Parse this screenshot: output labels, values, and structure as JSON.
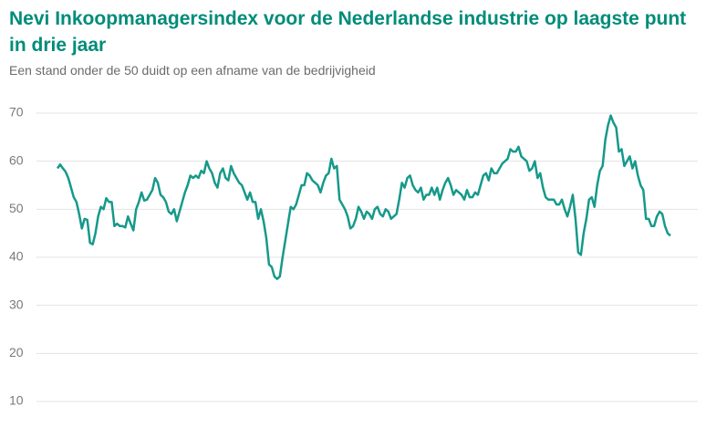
{
  "chart_data": {
    "type": "line",
    "title": "Nevi Inkoopmanagersindex voor de Nederlandse industrie op laagste punt in drie jaar",
    "subtitle": "Een stand onder de 50 duidt op een afname van de bedrijvigheid",
    "color": "#16998a",
    "ylim": [
      10,
      70
    ],
    "yticks": [
      10,
      20,
      30,
      40,
      50,
      60,
      70
    ],
    "grid": true,
    "values": [
      58.5,
      59.3,
      58.5,
      57.8,
      56.5,
      54.5,
      52.5,
      51.5,
      49,
      46,
      48,
      47.8,
      43,
      42.7,
      45,
      48.5,
      50.5,
      50,
      52.3,
      51.5,
      51.5,
      46.5,
      47,
      46.5,
      46.5,
      46.2,
      48.5,
      47,
      45.6,
      50,
      51.5,
      53.5,
      51.8,
      52,
      53,
      54,
      56.5,
      55.5,
      53,
      52.5,
      51.5,
      49.5,
      49,
      50,
      47.5,
      49.5,
      51.5,
      53.5,
      55,
      57,
      56.5,
      57,
      56.5,
      58,
      57.5,
      60,
      58.5,
      57.5,
      55.5,
      54.5,
      57.5,
      58.5,
      56.5,
      56,
      59,
      57.5,
      56.5,
      55.5,
      55,
      53.5,
      52,
      53.5,
      51.5,
      51.5,
      48,
      50,
      47.5,
      44,
      38.5,
      38,
      36,
      35.5,
      36,
      40,
      43.5,
      47,
      50.5,
      50,
      51,
      53,
      55,
      55,
      57.5,
      57,
      56,
      55.5,
      55,
      53.5,
      55.5,
      57,
      57.5,
      60.5,
      58.5,
      59,
      52,
      51,
      50,
      48.5,
      46,
      46.5,
      48,
      50.5,
      49.5,
      48,
      49.5,
      49,
      48,
      50,
      50.5,
      49,
      48.5,
      50,
      49.5,
      48,
      48.5,
      49,
      52,
      55.5,
      54.5,
      56.5,
      57,
      55,
      54,
      53.5,
      54.5,
      52,
      53,
      53,
      54.5,
      53,
      54.5,
      52,
      54,
      55.5,
      56.5,
      55,
      53,
      54,
      53.5,
      53,
      52,
      54,
      52.5,
      52.5,
      53.5,
      53,
      55,
      57,
      57.5,
      56,
      58.5,
      57.5,
      57.5,
      58.5,
      59.5,
      60,
      60.5,
      62.5,
      62,
      62,
      63,
      61,
      60.5,
      60,
      58,
      58.5,
      60,
      56.5,
      57.5,
      54.5,
      52.5,
      52,
      52,
      52,
      51,
      51,
      52,
      50,
      48.5,
      50.5,
      53,
      48,
      41,
      40.5,
      45,
      48,
      52,
      52.5,
      50.5,
      55,
      58,
      59,
      64.5,
      67.5,
      69.5,
      68,
      67,
      62,
      62.5,
      59,
      60,
      61,
      58.5,
      60,
      57,
      55,
      54,
      48,
      48,
      46.5,
      46.5,
      48.5,
      49.5,
      49,
      46.5,
      45,
      44.5
    ]
  }
}
